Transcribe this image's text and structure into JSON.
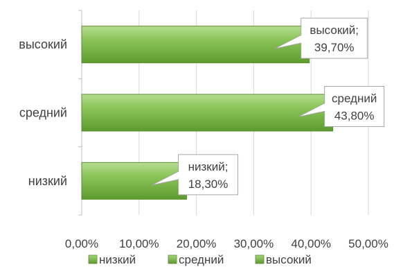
{
  "chart_data": {
    "type": "bar",
    "orientation": "horizontal",
    "categories": [
      "низкий",
      "средний",
      "высокий"
    ],
    "values": [
      18.3,
      43.8,
      39.7
    ],
    "value_labels": [
      "18,30%",
      "43,80%",
      "39,70%"
    ],
    "callout_names": [
      "низкий;",
      "средний",
      "высокий;"
    ],
    "x_ticks": [
      "0,00%",
      "10,00%",
      "20,00%",
      "30,00%",
      "40,00%",
      "50,00%"
    ],
    "xlim": [
      0,
      50
    ],
    "grid": true,
    "legend_position": "bottom",
    "legend": [
      "низкий",
      "средний",
      "высокий"
    ],
    "bar_color": "#76b845",
    "title": "",
    "xlabel": "",
    "ylabel": ""
  }
}
